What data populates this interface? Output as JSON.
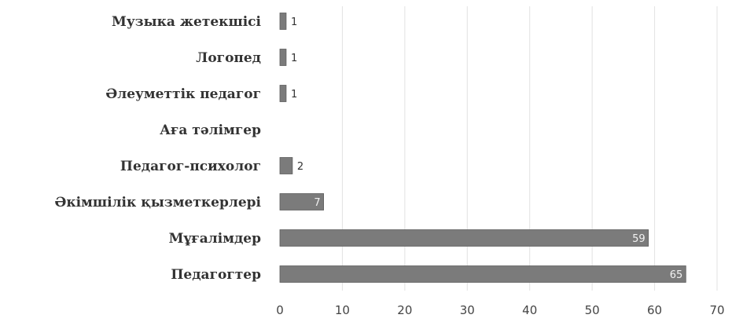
{
  "chart_data": {
    "type": "bar",
    "orientation": "horizontal",
    "categories": [
      "Музыка жетекшісі",
      "Логопед",
      "Әлеуметтік педагог",
      "Аға тәлімгер",
      "Педагог-психолог",
      "Әкімшілік қызметкерлері",
      "Мұғалімдер",
      "Педагогтер"
    ],
    "values": [
      1,
      1,
      1,
      null,
      2,
      7,
      59,
      65
    ],
    "data_labels": [
      "1",
      "1",
      "1",
      "",
      "2",
      "7",
      "59",
      "65"
    ],
    "xlim": [
      0,
      70
    ],
    "xticks": [
      0,
      10,
      20,
      30,
      40,
      50,
      60,
      70
    ],
    "title": "",
    "xlabel": "",
    "ylabel": "",
    "grid": "vertical",
    "legend": "none"
  },
  "colors": {
    "bar": "#7b7b7b",
    "bar_edge": "#5e5e5e",
    "grid": "#e2e2e2",
    "label_inside": "#f2f2f2",
    "label_outside": "#333333"
  }
}
